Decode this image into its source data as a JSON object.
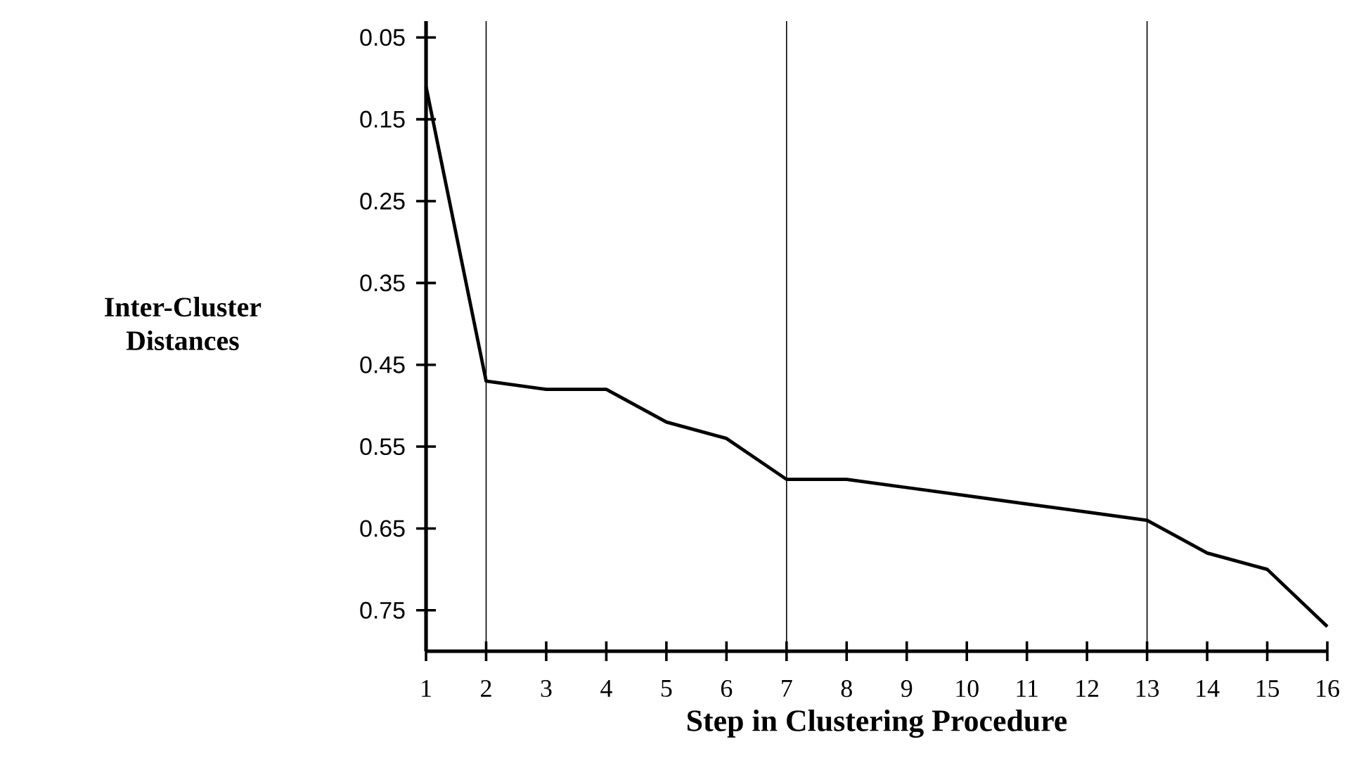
{
  "chart_data": {
    "type": "line",
    "xlabel": "Step in Clustering Procedure",
    "ylabel": "Inter-Cluster Distances",
    "x": [
      1,
      2,
      3,
      4,
      5,
      6,
      7,
      8,
      9,
      10,
      11,
      12,
      13,
      14,
      15,
      16
    ],
    "values": [
      0.11,
      0.47,
      0.48,
      0.48,
      0.52,
      0.54,
      0.59,
      0.59,
      0.6,
      0.61,
      0.62,
      0.63,
      0.64,
      0.68,
      0.7,
      0.77
    ],
    "color": "#000000",
    "marker": "none",
    "line_style": "solid",
    "xlim": [
      1,
      16
    ],
    "xticks": [
      1,
      2,
      3,
      4,
      5,
      6,
      7,
      8,
      9,
      10,
      11,
      12,
      13,
      14,
      15,
      16
    ],
    "ylim": [
      0.8,
      0.03
    ],
    "yticks": [
      0.05,
      0.15,
      0.25,
      0.35,
      0.45,
      0.55,
      0.65,
      0.75
    ],
    "ref_lines": [
      {
        "axis": "x",
        "value": 2,
        "color": "#000000"
      },
      {
        "axis": "x",
        "value": 7,
        "color": "#000000"
      },
      {
        "axis": "x",
        "value": 13,
        "color": "#000000"
      }
    ]
  }
}
